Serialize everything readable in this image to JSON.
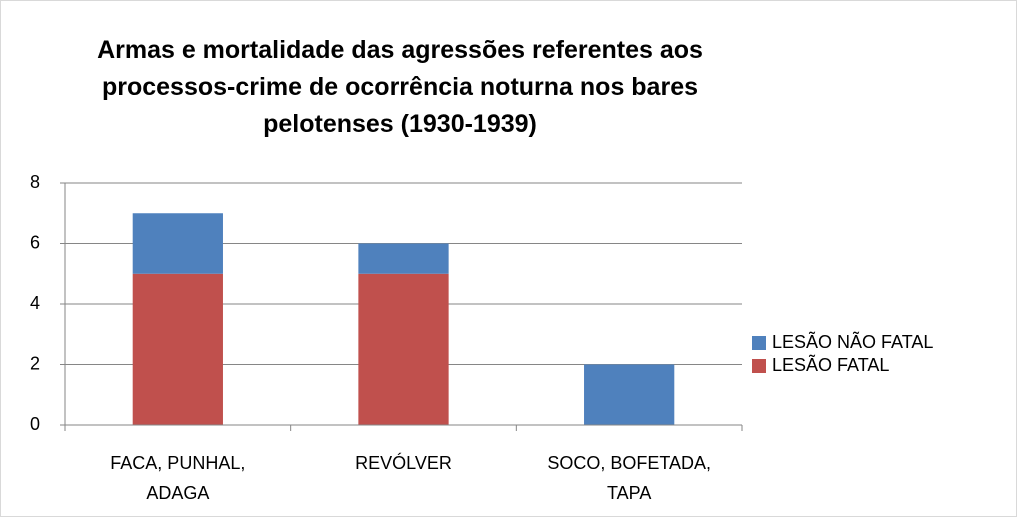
{
  "chart_data": {
    "type": "stacked_bar",
    "title": "Armas e mortalidade das agressões referentes aos processos-crime de ocorrência noturna nos bares pelotenses (1930-1939)",
    "categories": [
      "FACA, PUNHAL, ADAGA",
      "REVÓLVER",
      "SOCO, BOFETADA, TAPA"
    ],
    "series": [
      {
        "name": "LESÃO FATAL",
        "color": "#c0504d",
        "values": [
          5,
          5,
          0
        ]
      },
      {
        "name": "LESÃO NÃO FATAL",
        "color": "#4f81bd",
        "values": [
          2,
          1,
          2
        ]
      }
    ],
    "ylim": [
      0,
      8
    ],
    "yticks": [
      0,
      2,
      4,
      6,
      8
    ],
    "grid": true,
    "legend": "right"
  }
}
